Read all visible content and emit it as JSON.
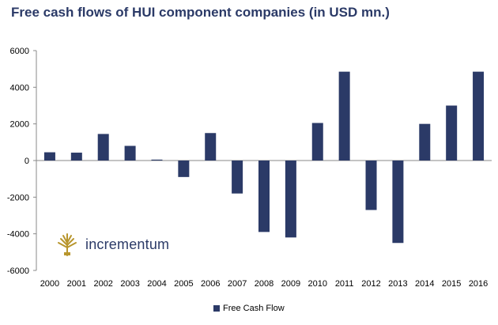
{
  "title": "Free cash flows of HUI component companies (in USD mn.)",
  "logo": {
    "text": "incrementum"
  },
  "colors": {
    "bar": "#2b3a67",
    "title": "#2b3a67",
    "gold": "#b8962e"
  },
  "chart_data": {
    "type": "bar",
    "title": "Free cash flows of HUI component companies (in USD mn.)",
    "categories": [
      "2000",
      "2001",
      "2002",
      "2003",
      "2004",
      "2005",
      "2006",
      "2007",
      "2008",
      "2009",
      "2010",
      "2011",
      "2012",
      "2013",
      "2014",
      "2015",
      "2016"
    ],
    "series": [
      {
        "name": "Free Cash Flow",
        "values": [
          450,
          430,
          1450,
          800,
          50,
          -900,
          1500,
          -1800,
          -3900,
          -4200,
          2050,
          4850,
          -2700,
          -4500,
          2000,
          3000,
          4850
        ]
      }
    ],
    "yticks": [
      "6000",
      "4000",
      "2000",
      "0",
      "-2000",
      "-4000",
      "-6000"
    ],
    "ylim": [
      -6000,
      6000
    ],
    "xlabel": "",
    "ylabel": "",
    "grid": false,
    "legend_position": "bottom"
  }
}
